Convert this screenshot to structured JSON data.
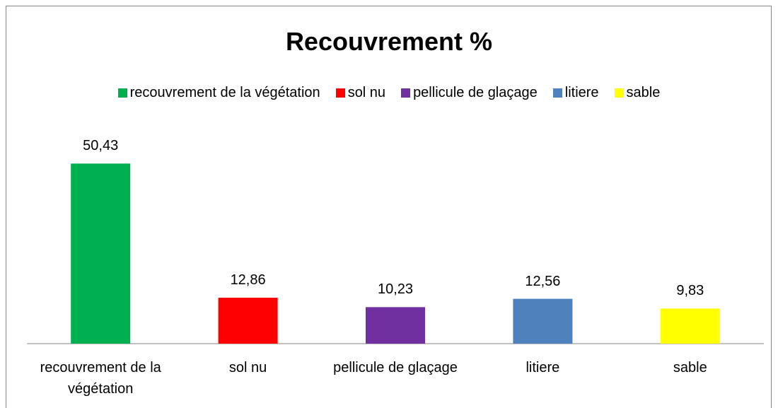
{
  "chart_data": {
    "type": "bar",
    "title": "Recouvrement %",
    "categories": [
      "recouvrement de la végétation",
      "sol nu",
      "pellicule de glaçage",
      "litiere",
      "sable"
    ],
    "values": [
      50.43,
      12.86,
      10.23,
      12.56,
      9.83
    ],
    "value_labels": [
      "50,43",
      "12,86",
      "10,23",
      "12,56",
      "9,83"
    ],
    "colors": [
      "#00b050",
      "#ff0000",
      "#7030a0",
      "#4f81bd",
      "#ffff00"
    ],
    "ylim": [
      0,
      60
    ],
    "legend": "top"
  }
}
